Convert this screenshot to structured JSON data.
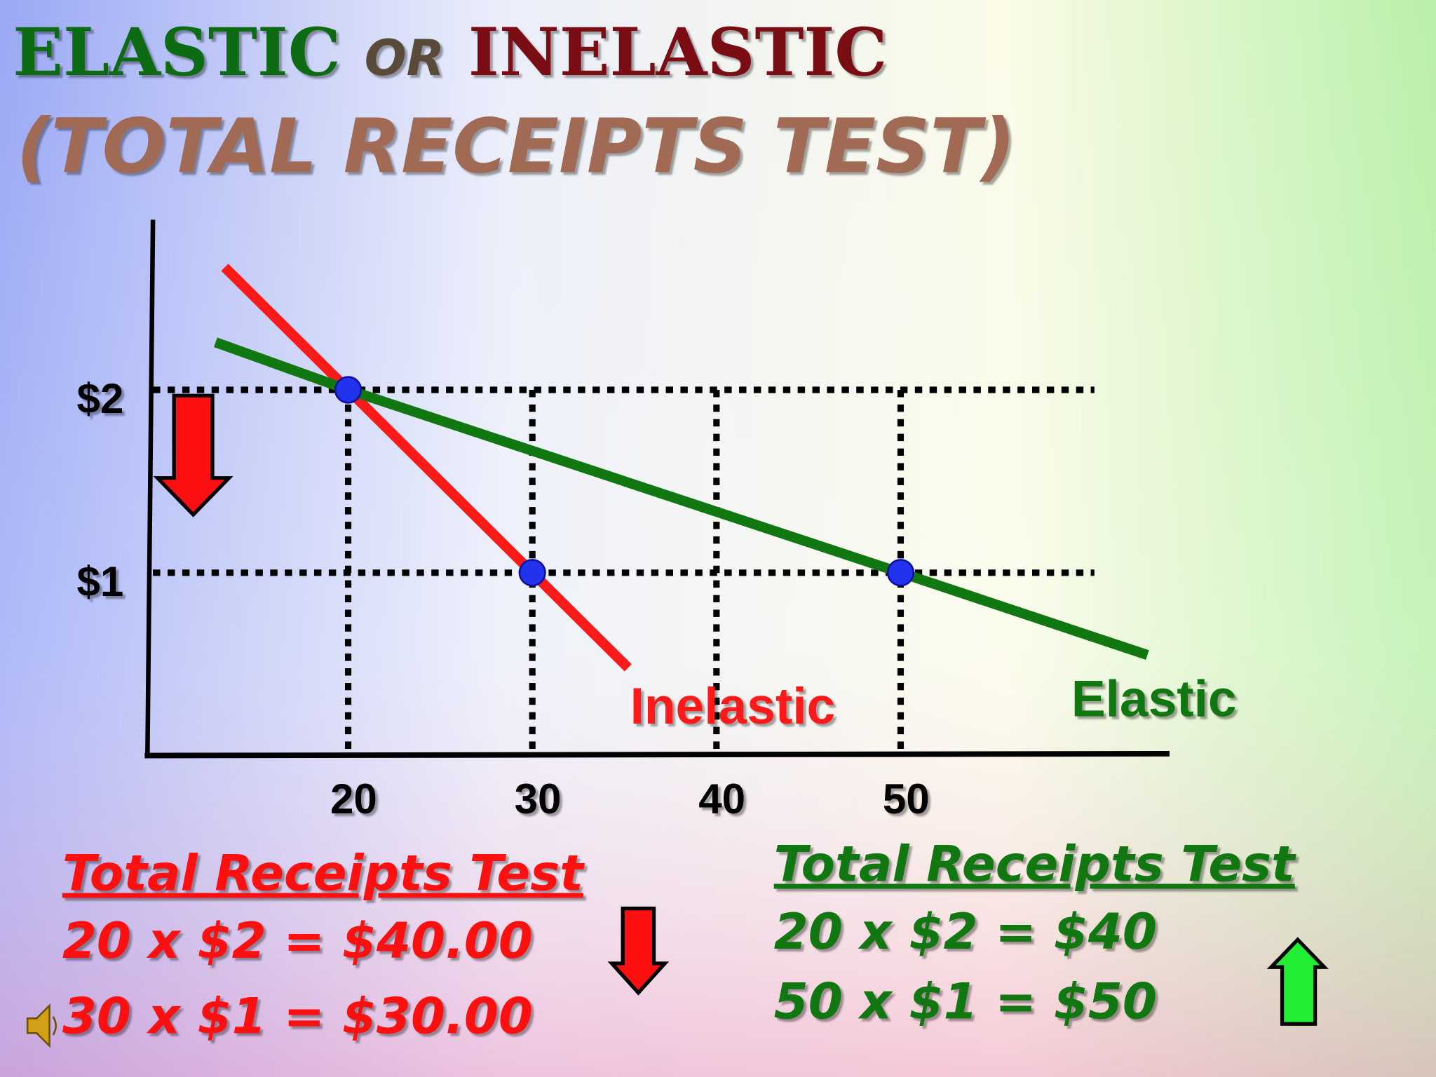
{
  "title": {
    "elastic": "ELASTIC",
    "or": "OR",
    "inelastic": "INELASTIC",
    "subtitle": "(TOTAL RECEIPTS TEST)"
  },
  "chart_data": {
    "type": "line",
    "xlim": [
      9.2,
      64.5
    ],
    "ylim": [
      0,
      2.93
    ],
    "xticks": [
      20,
      30,
      40,
      50
    ],
    "yticks": [
      {
        "value": 1,
        "label": "$1"
      },
      {
        "value": 2,
        "label": "$2"
      }
    ],
    "grid": true,
    "series": [
      {
        "name": "Inelastic",
        "color": "#ff1a1a",
        "x": [
          13.3,
          20,
          30,
          35.2
        ],
        "values": [
          2.67,
          2,
          1,
          0.48
        ]
      },
      {
        "name": "Elastic",
        "color": "#117711",
        "x": [
          12.8,
          20,
          50,
          63.4
        ],
        "values": [
          2.26,
          2,
          1,
          0.55
        ]
      }
    ]
  },
  "inelastic_box": {
    "heading": "Total Receipts Test",
    "line1": "20 x $2 = $40.00",
    "line2": "30 x $1 = $30.00"
  },
  "elastic_box": {
    "heading": "Total Receipts Test",
    "line1": "20 x $2 = $40",
    "line2": "50 x $1 = $50"
  }
}
